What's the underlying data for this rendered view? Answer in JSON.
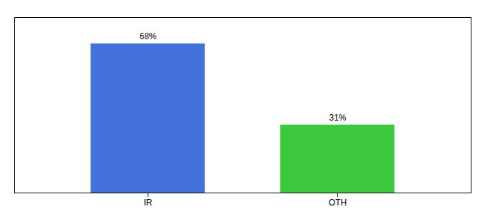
{
  "chart_data": {
    "type": "bar",
    "categories": [
      "IR",
      "OTH"
    ],
    "values": [
      68,
      31
    ],
    "value_labels": [
      "68%",
      "31%"
    ],
    "colors": [
      "#4472db",
      "#3dc93d"
    ],
    "ylim": [
      0,
      80
    ],
    "tick_labels": "x",
    "data_labels": true
  }
}
